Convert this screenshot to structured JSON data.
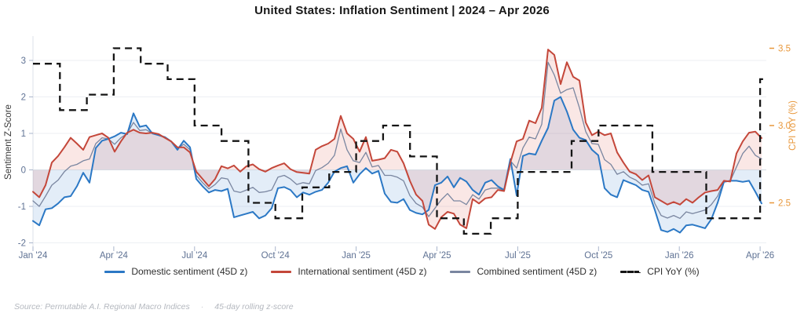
{
  "title": "United States: Inflation Sentiment  |  2024 – Apr 2026",
  "legend": {
    "items": [
      {
        "label": "Domestic sentiment (45D z)",
        "color": "#2b78c5",
        "style": "solid"
      },
      {
        "label": "International sentiment (45D z)",
        "color": "#c4473a",
        "style": "solid"
      },
      {
        "label": "Combined sentiment (45D z)",
        "color": "#7a86a0",
        "style": "solid"
      },
      {
        "label": "CPI YoY (%)",
        "color": "#151515",
        "style": "dashed"
      }
    ]
  },
  "footer": {
    "source": "Source: Permutable A.I. Regional Macro Indices",
    "separator": "·",
    "note": "45-day rolling z-score"
  },
  "chart_data": {
    "type": "line",
    "title": "United States: Inflation Sentiment | 2024 – Apr 2026",
    "x_axis": {
      "tick_labels": [
        "Jan '24",
        "Apr '24",
        "Jul '24",
        "Oct '24",
        "Jan '25",
        "Apr '25",
        "Jul '25",
        "Oct '25",
        "Jan '26",
        "Apr '26"
      ],
      "tick_months": [
        0,
        3,
        6,
        9,
        12,
        15,
        18,
        21,
        24,
        27
      ],
      "label_color": "#5f7294"
    },
    "y_left": {
      "label": "Sentiment Z-Score",
      "ticks": [
        3,
        2,
        1,
        0,
        -1,
        -2
      ],
      "range": [
        -2.15,
        3.45
      ],
      "label_color": "#3a3a3a",
      "tick_color": "#5f7294",
      "grid_color": "#edeff3",
      "zero_line_color": "#d5dae2"
    },
    "y_right": {
      "label": "CPI YoY (%)",
      "ticks": [
        3.5,
        3.0,
        2.5
      ],
      "color": "#e8973a"
    },
    "sample_interval": "weekly (every 8px, Jan 2024 → Apr 2026)",
    "series": [
      {
        "name": "Domestic sentiment (45D z)",
        "color": "#2b78c5",
        "width": 2,
        "fill": "rgba(80,140,210,0.16)",
        "values": [
          -1.4,
          -1.52,
          -1.08,
          -1.05,
          -0.92,
          -0.75,
          -0.72,
          -0.45,
          -0.08,
          -0.35,
          0.6,
          0.8,
          0.85,
          0.92,
          1.02,
          0.98,
          1.55,
          1.18,
          1.22,
          1.0,
          0.95,
          0.9,
          0.78,
          0.55,
          0.8,
          0.62,
          -0.25,
          -0.45,
          -0.62,
          -0.55,
          -0.58,
          -0.52,
          -1.3,
          -1.25,
          -1.2,
          -1.15,
          -1.33,
          -1.25,
          -1.05,
          -0.5,
          -0.47,
          -0.55,
          -0.75,
          -0.62,
          -0.68,
          -0.6,
          -0.55,
          -0.35,
          -0.05,
          0.05,
          0.1,
          -0.35,
          -0.12,
          0.05,
          -0.1,
          -0.03,
          -0.65,
          -0.88,
          -0.9,
          -0.8,
          -1.1,
          -1.18,
          -1.22,
          -1.1,
          -0.42,
          -0.35,
          -0.18,
          -0.48,
          -0.22,
          -0.32,
          -0.55,
          -0.68,
          -0.35,
          -0.28,
          -0.45,
          -0.55,
          0.3,
          -0.7,
          0.38,
          0.45,
          0.42,
          0.8,
          1.15,
          1.9,
          2.0,
          1.6,
          1.1,
          0.88,
          0.82,
          0.55,
          0.4,
          -0.5,
          -0.68,
          -0.75,
          -0.28,
          -0.35,
          -0.42,
          -0.55,
          -0.6,
          -1.1,
          -1.65,
          -1.7,
          -1.62,
          -1.72,
          -1.52,
          -1.5,
          -1.55,
          -1.6,
          -1.35,
          -0.9,
          -0.33,
          -0.3,
          -0.3,
          -0.33,
          -0.3,
          -0.6,
          -0.92
        ]
      },
      {
        "name": "International sentiment (45D z)",
        "color": "#c4473a",
        "width": 2,
        "fill": "rgba(220,95,80,0.15)",
        "values": [
          -0.6,
          -0.75,
          -0.42,
          0.2,
          0.38,
          0.62,
          0.88,
          0.72,
          0.55,
          0.9,
          0.95,
          1.0,
          0.88,
          0.5,
          0.78,
          1.02,
          1.1,
          1.02,
          1.0,
          1.02,
          0.98,
          0.88,
          0.78,
          0.62,
          0.62,
          0.48,
          -0.05,
          -0.25,
          -0.45,
          -0.25,
          0.1,
          0.04,
          0.12,
          -0.05,
          0.1,
          0.15,
          0.02,
          -0.05,
          0.05,
          0.12,
          0.18,
          0.02,
          -0.06,
          -0.08,
          -0.1,
          0.55,
          0.65,
          0.72,
          0.85,
          1.48,
          1.0,
          0.85,
          0.5,
          0.9,
          0.25,
          0.28,
          0.32,
          0.55,
          0.5,
          0.18,
          -0.3,
          -0.68,
          -0.85,
          -1.5,
          -1.62,
          -1.3,
          -1.15,
          -1.2,
          -1.5,
          -1.6,
          -0.8,
          -0.92,
          -0.78,
          -0.75,
          -0.55,
          -0.58,
          0.2,
          0.78,
          0.85,
          1.35,
          1.28,
          1.7,
          3.3,
          3.15,
          2.35,
          2.95,
          2.55,
          2.45,
          1.3,
          0.95,
          1.05,
          0.95,
          1.0,
          0.48,
          0.2,
          -0.05,
          -0.12,
          -0.28,
          -0.15,
          -0.75,
          -0.85,
          -0.95,
          -0.88,
          -0.95,
          -0.8,
          -0.9,
          -0.75,
          -0.62,
          -0.58,
          -0.55,
          -0.3,
          -0.32,
          0.45,
          0.78,
          1.02,
          1.05,
          0.87
        ]
      },
      {
        "name": "Combined sentiment (45D z)",
        "color": "#7a86a0",
        "width": 1.3,
        "fill": null,
        "values": [
          -0.85,
          -1.0,
          -0.72,
          -0.42,
          -0.28,
          -0.05,
          0.1,
          0.15,
          0.25,
          0.3,
          0.72,
          0.88,
          0.85,
          0.7,
          0.88,
          1.0,
          1.3,
          1.08,
          1.1,
          1.0,
          0.95,
          0.88,
          0.78,
          0.58,
          0.7,
          0.55,
          -0.15,
          -0.35,
          -0.52,
          -0.4,
          -0.22,
          -0.25,
          -0.58,
          -0.62,
          -0.55,
          -0.48,
          -0.62,
          -0.6,
          -0.55,
          -0.2,
          -0.15,
          -0.25,
          -0.4,
          -0.35,
          -0.38,
          -0.02,
          0.06,
          0.18,
          0.4,
          1.12,
          0.55,
          0.25,
          0.2,
          0.48,
          0.08,
          0.12,
          -0.15,
          -0.15,
          -0.2,
          -0.3,
          -0.7,
          -0.92,
          -1.02,
          -1.28,
          -1.05,
          -0.82,
          -0.65,
          -0.85,
          -0.85,
          -0.95,
          -0.68,
          -0.8,
          -0.55,
          -0.5,
          -0.5,
          -0.56,
          0.25,
          0.05,
          0.6,
          0.9,
          0.85,
          1.25,
          2.95,
          2.6,
          2.1,
          2.2,
          2.25,
          1.7,
          1.05,
          0.72,
          0.7,
          0.28,
          0.15,
          -0.12,
          -0.05,
          -0.2,
          -0.28,
          -0.42,
          -0.38,
          -0.92,
          -1.25,
          -1.32,
          -1.25,
          -1.33,
          -1.15,
          -1.2,
          -1.15,
          -1.1,
          -0.95,
          -0.72,
          -0.32,
          -0.31,
          0.08,
          0.45,
          0.65,
          0.4,
          0.3
        ]
      }
    ],
    "cpi_yoy": {
      "name": "CPI YoY (%)",
      "color": "#151515",
      "style": "dashed step line",
      "start_month": "Jan 2024",
      "monthly_values": [
        3.4,
        3.1,
        3.2,
        3.5,
        3.4,
        3.3,
        3.0,
        2.9,
        2.5,
        2.4,
        2.6,
        2.7,
        2.9,
        3.0,
        2.8,
        2.4,
        2.3,
        2.4,
        2.7,
        2.7,
        2.9,
        3.0,
        3.0,
        2.7,
        2.7,
        2.4,
        2.4,
        3.3
      ]
    }
  }
}
